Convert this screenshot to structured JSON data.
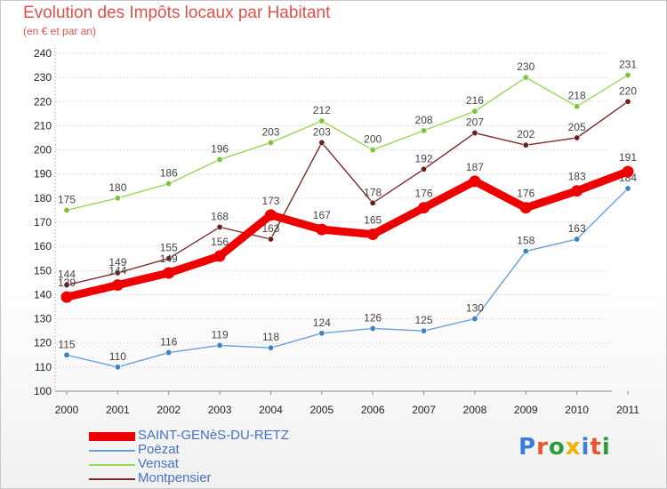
{
  "header": {
    "title": "Evolution des Impôts locaux par Habitant",
    "subtitle": "(en € et par an)"
  },
  "logo": {
    "text": "Proxiti",
    "colors": [
      "#3a7fd5",
      "#e8562a",
      "#2e9b3a",
      "#f0b400",
      "#3a7fd5",
      "#e8562a",
      "#2e9b3a"
    ]
  },
  "chart_data": {
    "type": "line",
    "title": "Evolution des Impôts locaux par Habitant",
    "subtitle": "(en € et par an)",
    "x": [
      "2000",
      "2001",
      "2002",
      "2003",
      "2004",
      "2005",
      "2006",
      "2007",
      "2008",
      "2009",
      "2010",
      "2011"
    ],
    "ylim": [
      100,
      240
    ],
    "yticks": [
      100,
      110,
      120,
      130,
      140,
      150,
      160,
      170,
      180,
      190,
      200,
      210,
      220,
      230,
      240
    ],
    "grid": "horizontal",
    "legend_position": "bottom-left",
    "series": [
      {
        "name": "Vensat",
        "color": "#99d75b",
        "marker": "#7cc43c",
        "values": [
          175,
          180,
          186,
          196,
          203,
          212,
          200,
          208,
          216,
          230,
          218,
          231
        ]
      },
      {
        "name": "Montpensier",
        "color": "#7a2a2a",
        "marker": "#6b1e1e",
        "values": [
          144,
          149,
          155,
          168,
          163,
          203,
          178,
          192,
          207,
          202,
          205,
          220
        ]
      },
      {
        "name": "Poëzat",
        "color": "#6ca0d6",
        "marker": "#3b82c6",
        "values": [
          115,
          110,
          116,
          119,
          118,
          124,
          126,
          125,
          130,
          158,
          163,
          184
        ]
      },
      {
        "name": "SAINT-GENèS-DU-RETZ",
        "color": "#ee0000",
        "marker": "#ee0000",
        "emphasis": true,
        "values": [
          139,
          144,
          149,
          156,
          173,
          167,
          165,
          176,
          187,
          176,
          183,
          191
        ]
      }
    ],
    "legend_order": [
      "SAINT-GENèS-DU-RETZ",
      "Poëzat",
      "Vensat",
      "Montpensier"
    ]
  }
}
